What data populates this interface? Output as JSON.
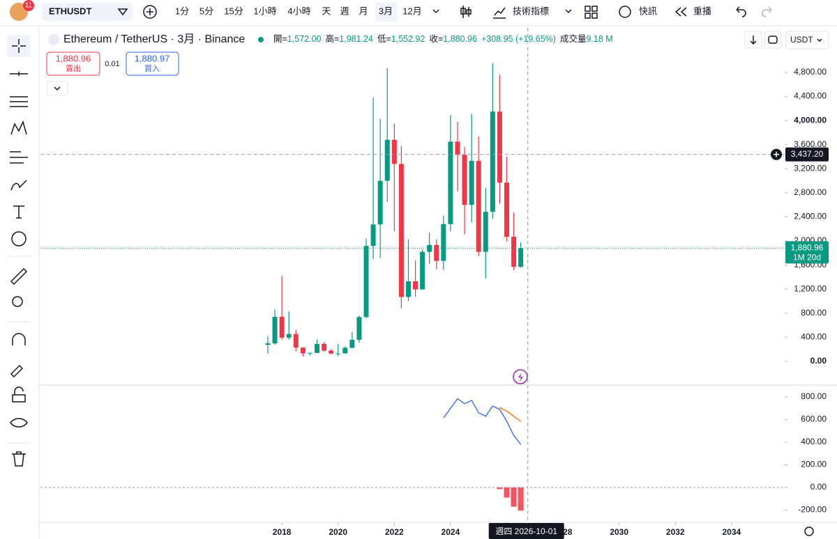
{
  "toolbar": {
    "badge": "11",
    "symbol": "ETHUSDT",
    "intervals": [
      "1分",
      "5分",
      "15分",
      "1小時",
      "4小時",
      "天",
      "週",
      "月",
      "3月",
      "12月"
    ],
    "indicators": "技術指標",
    "alerts": "快訊",
    "replay": "重播"
  },
  "legend": {
    "title": "Ethereum / TetherUS · 3月 · Binance",
    "ohlc": [
      {
        "label": "開=",
        "value": "1,572.00"
      },
      {
        "label": "高=",
        "value": "1,981.24"
      },
      {
        "label": "低=",
        "value": "1,552.92"
      },
      {
        "label": "收=",
        "value": "1,880.96"
      }
    ],
    "change": "+308.95 (+19.65%)",
    "volume_label": "成交量",
    "volume": "9.18 M",
    "sell_price": "1,880.96",
    "sell": "賣出",
    "spread": "0.01",
    "buy_price": "1,880.97",
    "buy": "買入",
    "currency": "USDT"
  },
  "chart_data": [
    {
      "type": "candlestick",
      "up_color": "#089981",
      "down_color": "#f23645",
      "x": [
        2017.5,
        2017.75,
        2018,
        2018.25,
        2018.5,
        2018.75,
        2019,
        2019.25,
        2019.5,
        2019.75,
        2020,
        2020.25,
        2020.5,
        2020.75,
        2021,
        2021.25,
        2021.5,
        2021.75,
        2022,
        2022.25,
        2022.5,
        2022.75,
        2023,
        2023.25,
        2023.5,
        2023.75,
        2024,
        2024.25,
        2024.5,
        2024.75,
        2025,
        2025.25,
        2025.5,
        2025.75,
        2026,
        2026.25,
        2026.5
      ],
      "open": [
        275,
        300,
        740,
        395,
        455,
        230,
        133,
        141,
        290,
        180,
        130,
        133,
        226,
        360,
        737,
        1918,
        2275,
        3000,
        3680,
        3280,
        1070,
        1330,
        1196,
        1820,
        1934,
        1670,
        2280,
        3650,
        3430,
        2600,
        3330,
        1820,
        2485,
        4150,
        2970,
        2070,
        1572
      ],
      "high": [
        420,
        860,
        1420,
        830,
        520,
        235,
        150,
        365,
        320,
        200,
        290,
        250,
        490,
        760,
        2040,
        4380,
        4030,
        4870,
        3950,
        3580,
        2030,
        1680,
        1860,
        2140,
        2030,
        2420,
        4090,
        3980,
        3560,
        4110,
        3740,
        2880,
        4950,
        4760,
        3400,
        2470,
        1981.24
      ],
      "low": [
        130,
        275,
        360,
        360,
        165,
        80,
        100,
        140,
        160,
        117,
        86,
        130,
        216,
        310,
        714,
        1700,
        1720,
        2650,
        2160,
        880,
        1000,
        1075,
        1190,
        1620,
        1530,
        1520,
        2160,
        2820,
        2110,
        2310,
        1750,
        1380,
        2370,
        2620,
        1990,
        1515,
        1552.92
      ],
      "close": [
        300,
        740,
        395,
        455,
        230,
        133,
        141,
        290,
        180,
        130,
        133,
        226,
        360,
        737,
        1918,
        2275,
        3000,
        3680,
        3280,
        1070,
        1330,
        1196,
        1820,
        1934,
        1670,
        2280,
        3650,
        3430,
        2600,
        3330,
        1820,
        2485,
        4150,
        2970,
        2070,
        1572,
        1880.96
      ],
      "xlim": [
        2009.41,
        2035.89
      ],
      "xticks": [
        2018,
        2020,
        2022,
        2024,
        2026,
        2028,
        2030,
        2032,
        2034
      ],
      "ylim": [
        -382,
        5540
      ],
      "yticks": [
        {
          "value": 0,
          "label": "0.00"
        },
        {
          "value": 400,
          "label": "400.00"
        },
        {
          "value": 800,
          "label": "800.00"
        },
        {
          "value": 1200,
          "label": "1,200.00"
        },
        {
          "value": 1600,
          "label": "1,600.00"
        },
        {
          "value": 2000,
          "label": "2,000.00"
        },
        {
          "value": 2400,
          "label": "2,400.00"
        },
        {
          "value": 2800,
          "label": "2,800.00"
        },
        {
          "value": 3200,
          "label": "3,200.00"
        },
        {
          "value": 3600,
          "label": "3,600.00"
        },
        {
          "value": 4000,
          "label": "4,000.00"
        },
        {
          "value": 4400,
          "label": "4,400.00"
        },
        {
          "value": 4800,
          "label": "4,800.00"
        }
      ],
      "grid": false,
      "crosshair": {
        "value": 3437.2,
        "label": "3,437.20",
        "date": 2026.75,
        "date_label": "週四 2026-10-01"
      },
      "last_price": {
        "value": 1880.96,
        "label": "1,880.96",
        "countdown": "1M 20d",
        "color": "#089981"
      }
    },
    {
      "type": "line",
      "x": [
        2023.75,
        2024,
        2024.25,
        2024.5,
        2024.75,
        2025,
        2025.25,
        2025.5,
        2025.75,
        2026,
        2026.25,
        2026.5
      ],
      "series": [
        {
          "color": "#2962ff",
          "values": [
            615,
            700,
            785,
            740,
            770,
            660,
            630,
            720,
            690,
            585,
            460,
            380
          ]
        },
        {
          "color": "#ff6d00",
          "values": [
            null,
            null,
            null,
            null,
            null,
            null,
            null,
            null,
            705,
            675,
            630,
            585
          ]
        },
        {
          "type": "bar",
          "color": "#f7525f",
          "values": [
            null,
            null,
            null,
            null,
            null,
            null,
            null,
            null,
            -15,
            -90,
            -170,
            -205
          ]
        }
      ],
      "xlim": [
        2009.41,
        2035.89
      ],
      "ylim": [
        -308,
        905
      ],
      "yticks": [
        {
          "value": -200,
          "label": "-200.00"
        },
        {
          "value": 0,
          "label": "0.00"
        },
        {
          "value": 200,
          "label": "200.00"
        },
        {
          "value": 400,
          "label": "400.00"
        },
        {
          "value": 600,
          "label": "600.00"
        },
        {
          "value": 800,
          "label": "800.00"
        }
      ],
      "grid": false
    }
  ]
}
